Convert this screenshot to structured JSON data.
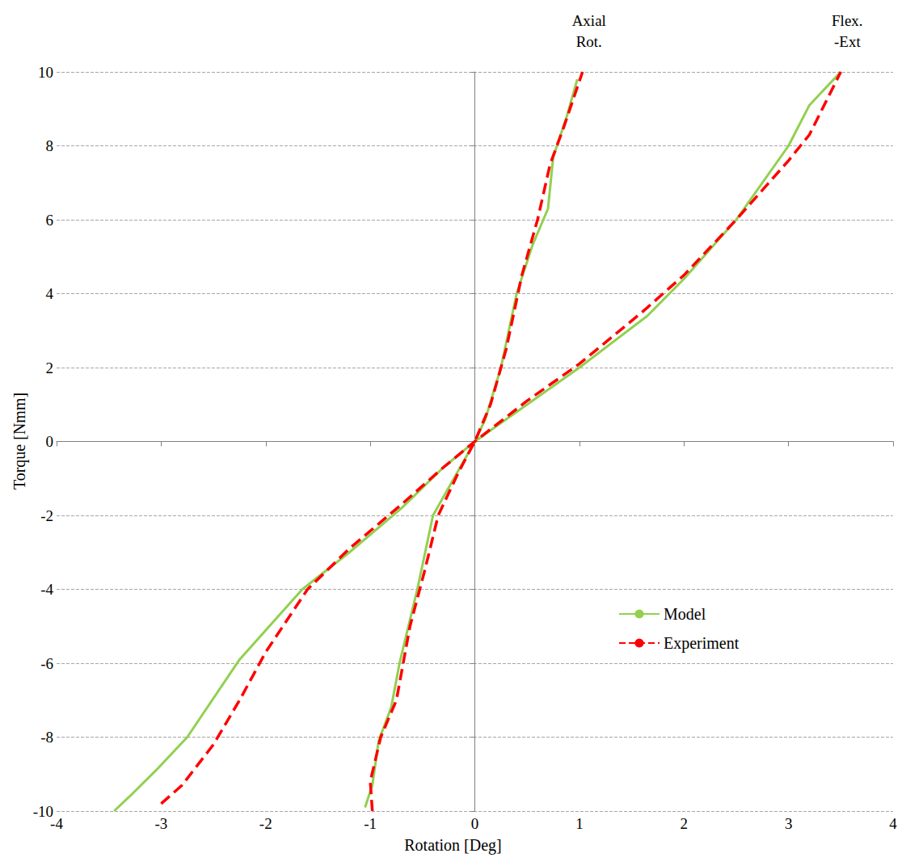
{
  "chart_data": {
    "type": "line",
    "x_label": "Rotation [Deg]",
    "y_label": "Torque [Nmm]",
    "xlim": [
      -4,
      4
    ],
    "xticks": [
      -4,
      -3,
      -2,
      -1,
      0,
      1,
      2,
      3,
      4
    ],
    "ylim": [
      -10,
      10
    ],
    "yticks": [
      -10,
      -8,
      -6,
      -4,
      -2,
      0,
      2,
      4,
      6,
      8,
      10
    ],
    "grid": true,
    "legend": "lower right",
    "series": [
      {
        "name": "Model",
        "color": "#92d050",
        "line_style": "solid"
      },
      {
        "name": "Experiment",
        "color": "#ff0000",
        "line_style": "dashed"
      }
    ],
    "groups": [
      {
        "label": "Axial Rot.",
        "curves": [
          {
            "x": [
              -1.05,
              -0.98,
              -0.92,
              -0.8,
              -0.72,
              -0.55,
              -0.4,
              -0.2,
              0,
              0.1,
              0.25,
              0.4,
              0.55,
              0.7,
              0.75,
              0.88,
              0.98
            ],
            "y": [
              -9.9,
              -9.3,
              -8.1,
              -7.2,
              -6,
              -4,
              -2,
              -1,
              0,
              0.6,
              2,
              4,
              5.3,
              6.3,
              7.7,
              8.8,
              9.8
            ]
          },
          {
            "x": [
              -0.98,
              -1.0,
              -0.9,
              -0.75,
              -0.62,
              -0.48,
              -0.35,
              -0.15,
              0,
              0.15,
              0.3,
              0.45,
              0.6,
              0.72,
              0.85,
              1.03
            ],
            "y": [
              -10,
              -9.2,
              -8,
              -7,
              -5,
              -3.5,
              -2,
              -0.8,
              0,
              1,
              2.5,
              4.5,
              6,
              7.5,
              8.5,
              10
            ]
          }
        ]
      },
      {
        "label": "Flex. -Ext",
        "curves": [
          {
            "x": [
              -3.45,
              -3.3,
              -3.05,
              -2.75,
              -2.25,
              -1.65,
              -1.2,
              -0.7,
              -0.3,
              0,
              0.5,
              1.0,
              1.65,
              2.0,
              2.5,
              3.0,
              3.2,
              3.5
            ],
            "y": [
              -10,
              -9.6,
              -8.9,
              -8,
              -5.9,
              -4,
              -3,
              -1.8,
              -0.7,
              0,
              1,
              2,
              3.4,
              4.4,
              6,
              8,
              9.1,
              10
            ]
          },
          {
            "x": [
              -3.0,
              -2.8,
              -2.5,
              -2.25,
              -2.0,
              -1.6,
              -1.2,
              -0.7,
              -0.3,
              0,
              0.5,
              1.0,
              1.6,
              2.0,
              2.5,
              3.0,
              3.2,
              3.5
            ],
            "y": [
              -9.8,
              -9.3,
              -8.2,
              -7,
              -5.7,
              -4,
              -2.9,
              -1.7,
              -0.7,
              0,
              1.1,
              2.1,
              3.5,
              4.5,
              6,
              7.6,
              8.3,
              10
            ]
          }
        ]
      }
    ]
  }
}
